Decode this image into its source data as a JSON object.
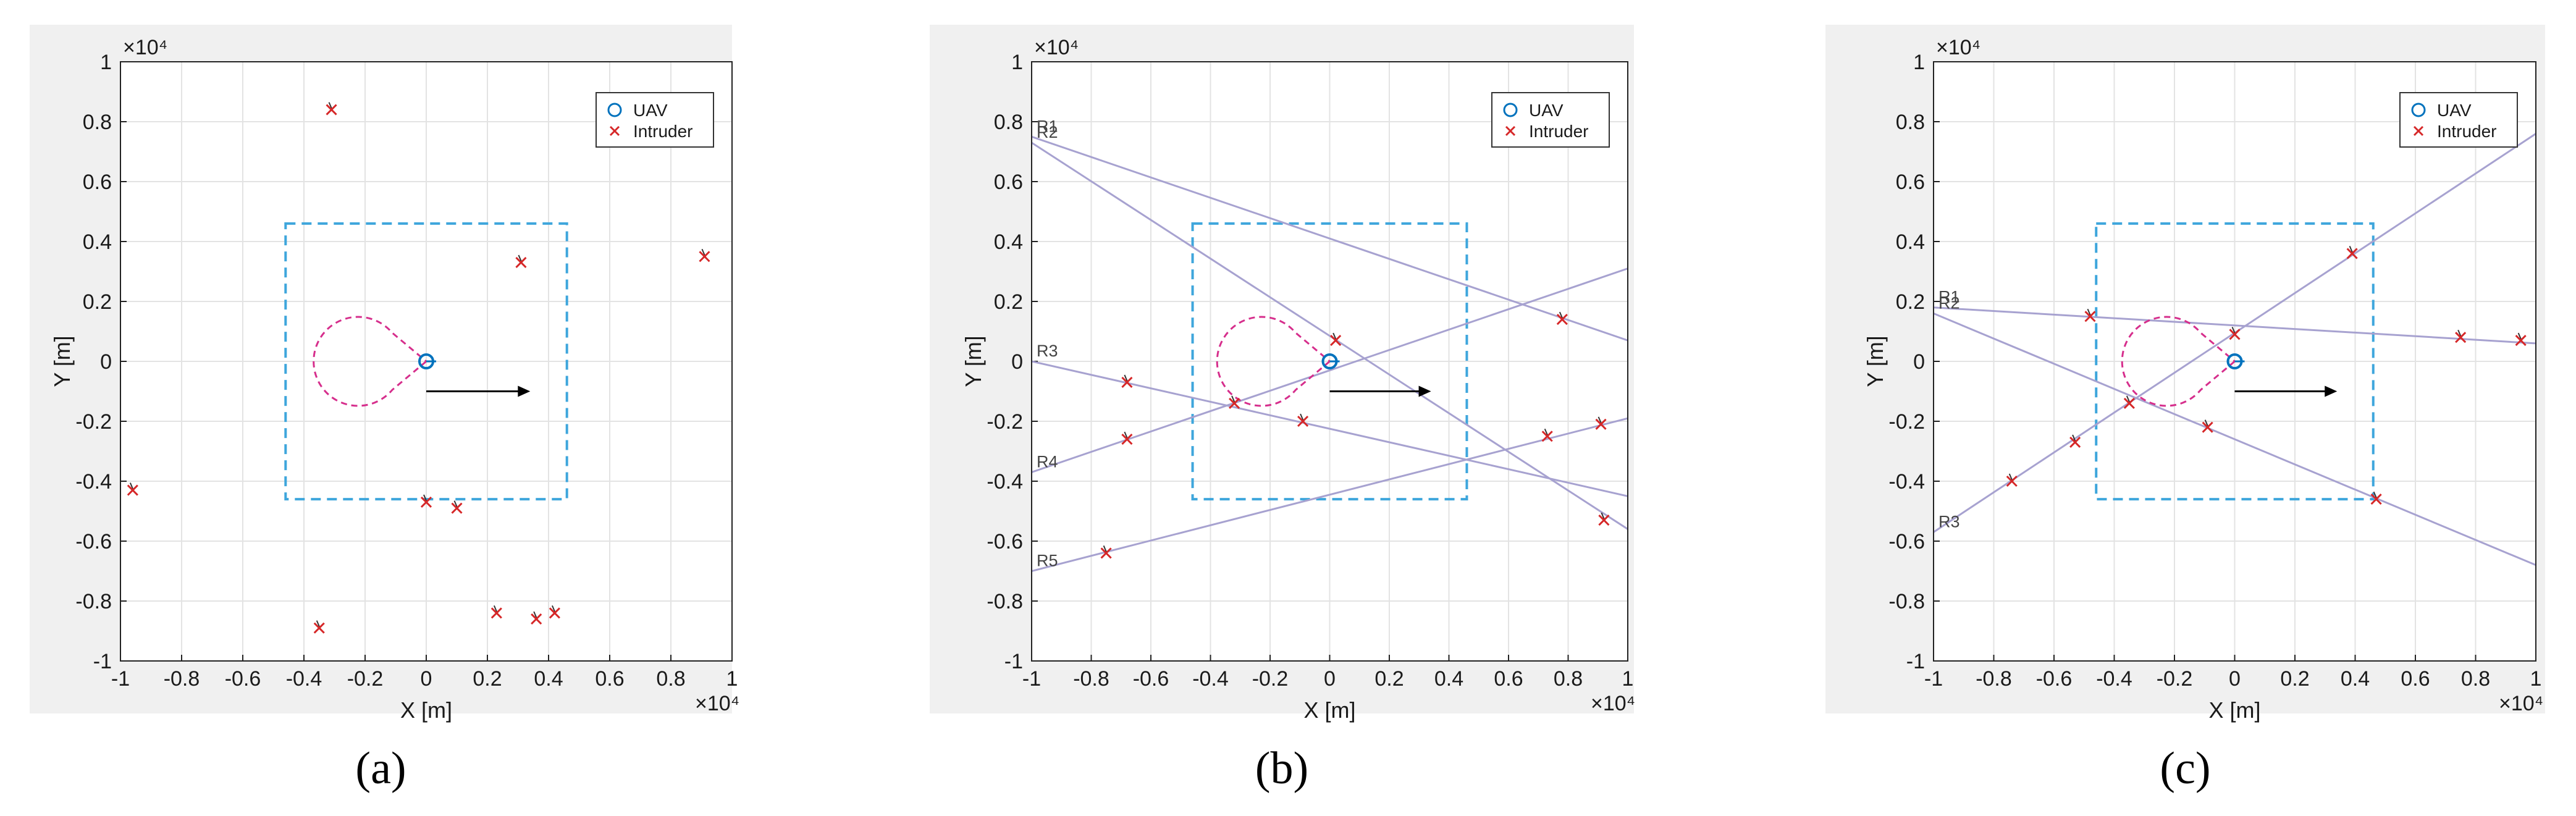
{
  "colors": {
    "panel_bg": "#f0f0f0",
    "axes_bg": "#ffffff",
    "grid": "#e3e3e3",
    "uav": "#0072bd",
    "intruder": "#d62728",
    "square": "#3ea6dc",
    "fov": "#d62e8c",
    "ray": "#a7a2d0",
    "heading": "#000000"
  },
  "chart_data": [
    {
      "type": "scatter",
      "caption": "(a)",
      "xlabel": "X    [m]",
      "ylabel": "Y  [m]",
      "x_exponent": "×10⁴",
      "y_exponent": "×10⁴",
      "xlim": [
        -1,
        1
      ],
      "ylim": [
        -1,
        1
      ],
      "xticks": [
        "-1",
        "-0.8",
        "-0.6",
        "-0.4",
        "-0.2",
        "0",
        "0.2",
        "0.4",
        "0.6",
        "0.8",
        "1"
      ],
      "yticks": [
        "-1",
        "-0.8",
        "-0.6",
        "-0.4",
        "-0.2",
        "0",
        "0.2",
        "0.4",
        "0.6",
        "0.8",
        "1"
      ],
      "grid": true,
      "legend": {
        "position": "top-right",
        "entries": [
          "UAV",
          "Intruder"
        ]
      },
      "surveillance_square": [
        -0.46,
        0.46,
        -0.46,
        0.46
      ],
      "uav": [
        0,
        0
      ],
      "heading_arrow": [
        [
          0,
          -0.1
        ],
        [
          0.34,
          -0.1
        ]
      ],
      "series": [
        {
          "name": "Intruder",
          "x": [
            -0.31,
            -0.96,
            0.31,
            0.91,
            0.0,
            0.1,
            -0.35,
            0.23,
            0.36,
            0.42
          ],
          "y": [
            0.84,
            -0.43,
            0.33,
            0.35,
            -0.47,
            -0.49,
            -0.89,
            -0.84,
            -0.86,
            -0.84
          ]
        }
      ],
      "rays": []
    },
    {
      "type": "scatter",
      "caption": "(b)",
      "xlabel": "X    [m]",
      "ylabel": "Y  [m]",
      "x_exponent": "×10⁴",
      "y_exponent": "×10⁴",
      "xlim": [
        -1,
        1
      ],
      "ylim": [
        -1,
        1
      ],
      "xticks": [
        "-1",
        "-0.8",
        "-0.6",
        "-0.4",
        "-0.2",
        "0",
        "0.2",
        "0.4",
        "0.6",
        "0.8",
        "1"
      ],
      "yticks": [
        "-1",
        "-0.8",
        "-0.6",
        "-0.4",
        "-0.2",
        "0",
        "0.2",
        "0.4",
        "0.6",
        "0.8",
        "1"
      ],
      "grid": true,
      "legend": {
        "position": "top-right",
        "entries": [
          "UAV",
          "Intruder"
        ]
      },
      "surveillance_square": [
        -0.46,
        0.46,
        -0.46,
        0.46
      ],
      "uav": [
        0,
        0
      ],
      "heading_arrow": [
        [
          0,
          -0.1
        ],
        [
          0.34,
          -0.1
        ]
      ],
      "series": [
        {
          "name": "Intruder",
          "x": [
            0.78,
            0.92,
            -0.68,
            -0.32,
            -0.09,
            0.73,
            0.91,
            -0.68,
            0.02,
            -0.75
          ],
          "y": [
            0.14,
            -0.53,
            -0.07,
            -0.14,
            -0.2,
            -0.25,
            -0.21,
            -0.26,
            0.07,
            -0.64
          ]
        }
      ],
      "rays": [
        {
          "label": "R1",
          "x": [
            -1,
            1
          ],
          "y": [
            0.75,
            0.07
          ]
        },
        {
          "label": "R2",
          "x": [
            -1,
            1
          ],
          "y": [
            0.73,
            -0.56
          ]
        },
        {
          "label": "R3",
          "x": [
            -1,
            1
          ],
          "y": [
            0.0,
            -0.45
          ]
        },
        {
          "label": "R4",
          "x": [
            -1,
            1
          ],
          "y": [
            -0.37,
            0.31
          ]
        },
        {
          "label": "R5",
          "x": [
            -1,
            1
          ],
          "y": [
            -0.7,
            -0.19
          ]
        }
      ]
    },
    {
      "type": "scatter",
      "caption": "(c)",
      "xlabel": "X    [m]",
      "ylabel": "Y  [m]",
      "x_exponent": "×10⁴",
      "y_exponent": "×10⁴",
      "xlim": [
        -1,
        1
      ],
      "ylim": [
        -1,
        1
      ],
      "xticks": [
        "-1",
        "-0.8",
        "-0.6",
        "-0.4",
        "-0.2",
        "0",
        "0.2",
        "0.4",
        "0.6",
        "0.8",
        "1"
      ],
      "yticks": [
        "-1",
        "-0.8",
        "-0.6",
        "-0.4",
        "-0.2",
        "0",
        "0.2",
        "0.4",
        "0.6",
        "0.8",
        "1"
      ],
      "grid": true,
      "legend": {
        "position": "top-right",
        "entries": [
          "UAV",
          "Intruder"
        ]
      },
      "surveillance_square": [
        -0.46,
        0.46,
        -0.46,
        0.46
      ],
      "uav": [
        0,
        0
      ],
      "heading_arrow": [
        [
          0,
          -0.1
        ],
        [
          0.34,
          -0.1
        ]
      ],
      "series": [
        {
          "name": "Intruder",
          "x": [
            -0.48,
            0.75,
            0.95,
            0.39,
            -0.35,
            -0.53,
            -0.74,
            -0.09,
            0.47,
            0.0
          ],
          "y": [
            0.15,
            0.08,
            0.07,
            0.36,
            -0.14,
            -0.27,
            -0.4,
            -0.22,
            -0.46,
            0.09
          ]
        }
      ],
      "rays": [
        {
          "label": "R1",
          "x": [
            -1,
            1
          ],
          "y": [
            0.18,
            0.06
          ]
        },
        {
          "label": "R2",
          "x": [
            -1,
            1
          ],
          "y": [
            0.16,
            -0.68
          ]
        },
        {
          "label": "R3",
          "x": [
            -1,
            1
          ],
          "y": [
            -0.57,
            0.76
          ]
        }
      ]
    }
  ]
}
